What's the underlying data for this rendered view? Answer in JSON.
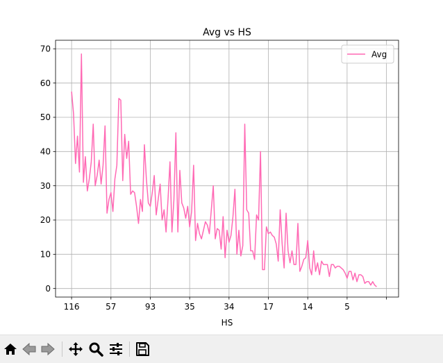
{
  "window": {
    "toolbar": [
      {
        "name": "home-icon",
        "label": "Home"
      },
      {
        "name": "back-icon",
        "label": "Back"
      },
      {
        "name": "forward-icon",
        "label": "Forward"
      },
      {
        "name": "pan-icon",
        "label": "Pan"
      },
      {
        "name": "zoom-icon",
        "label": "Zoom"
      },
      {
        "name": "configure-subplots-icon",
        "label": "Configure subplots"
      },
      {
        "name": "save-icon",
        "label": "Save"
      }
    ]
  },
  "chart_data": {
    "type": "line",
    "title": "Avg vs HS",
    "xlabel": "HS",
    "ylabel": "",
    "ylim": [
      -2.5,
      72.5
    ],
    "yticks": [
      0,
      10,
      20,
      30,
      40,
      50,
      60,
      70
    ],
    "xtick_labels": [
      "116",
      "57",
      "93",
      "35",
      "34",
      "17",
      "14",
      "5",
      ""
    ],
    "xtick_step": 20,
    "grid": true,
    "legend_position": "top-right",
    "series": [
      {
        "name": "Avg",
        "color": "#ff69b4",
        "values": [
          57.5,
          51,
          36.5,
          44.5,
          34,
          68.5,
          31,
          38.5,
          28.5,
          32,
          37,
          48,
          30,
          33,
          37.5,
          30.5,
          36,
          47.5,
          22,
          26,
          28,
          22.5,
          32,
          36,
          55.5,
          55,
          31.5,
          45,
          38,
          43,
          27.5,
          28.5,
          28,
          24,
          19,
          26,
          22.5,
          42,
          32,
          25,
          24,
          28,
          33,
          21.5,
          26,
          30.5,
          20,
          23,
          16.5,
          26,
          37,
          16.5,
          26,
          45.5,
          16.5,
          34.5,
          25,
          23.5,
          20.5,
          24,
          18,
          22.5,
          36,
          14,
          19,
          16,
          14.5,
          17,
          19.5,
          18.5,
          16,
          23,
          30,
          14.5,
          17.5,
          17,
          11.5,
          21,
          9,
          17,
          13.5,
          15.5,
          21,
          29,
          10,
          17,
          9.5,
          12.5,
          48,
          23,
          22,
          11,
          11,
          8.5,
          21.5,
          20,
          40,
          5.5,
          5.5,
          18,
          16,
          16.5,
          15.5,
          15,
          13,
          8,
          23,
          13,
          6,
          22,
          11,
          7.5,
          11,
          7,
          7,
          19,
          5,
          6.5,
          8.5,
          9,
          14,
          6,
          4,
          11,
          5,
          7.5,
          4,
          8,
          7,
          7,
          7,
          3.5,
          7,
          7,
          6,
          6.5,
          6.5,
          6,
          5.5,
          4.5,
          3,
          5,
          5,
          2.5,
          4.5,
          2,
          4,
          4,
          3.5,
          1.5,
          2,
          2,
          1,
          2,
          1,
          0.5
        ]
      }
    ]
  }
}
